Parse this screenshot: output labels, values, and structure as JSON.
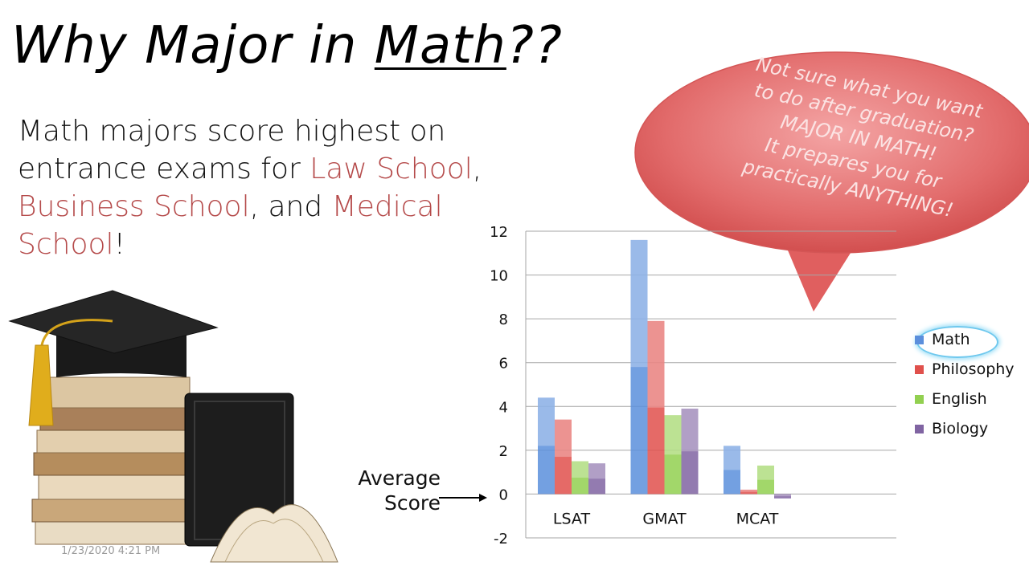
{
  "slide": {
    "title_prefix": "Why Major in ",
    "title_underlined": "Math",
    "title_suffix": "??",
    "body": {
      "part1": "Math majors score highest on entrance exams for ",
      "law": "Law School",
      "sep1": ", ",
      "business": "Business School",
      "sep2": ", and ",
      "medical": "Medical School",
      "end": "!"
    },
    "bubble_lines": [
      "Not sure what you want",
      "to do after graduation?",
      "MAJOR IN MATH!",
      "It prepares you for",
      "practically ANYTHING!"
    ],
    "arrow_label_line1": "Average",
    "arrow_label_line2": "Score",
    "date": "1/23/2020 4:21 PM"
  },
  "chart_data": {
    "type": "bar",
    "categories": [
      "LSAT",
      "GMAT",
      "MCAT"
    ],
    "series": [
      {
        "name": "Math",
        "values": [
          4.4,
          11.6,
          2.2
        ],
        "color": "#5b8fdc"
      },
      {
        "name": "Philosophy",
        "values": [
          3.4,
          7.9,
          0.2
        ],
        "color": "#e0504c"
      },
      {
        "name": "English",
        "values": [
          1.5,
          3.6,
          1.3
        ],
        "color": "#92d050"
      },
      {
        "name": "Biology",
        "values": [
          1.4,
          3.9,
          -0.2
        ],
        "color": "#8064a2"
      }
    ],
    "ylim": [
      -2,
      12
    ],
    "yticks": [
      -2,
      0,
      2,
      4,
      6,
      8,
      10,
      12
    ],
    "grid": true,
    "legend_position": "right"
  }
}
